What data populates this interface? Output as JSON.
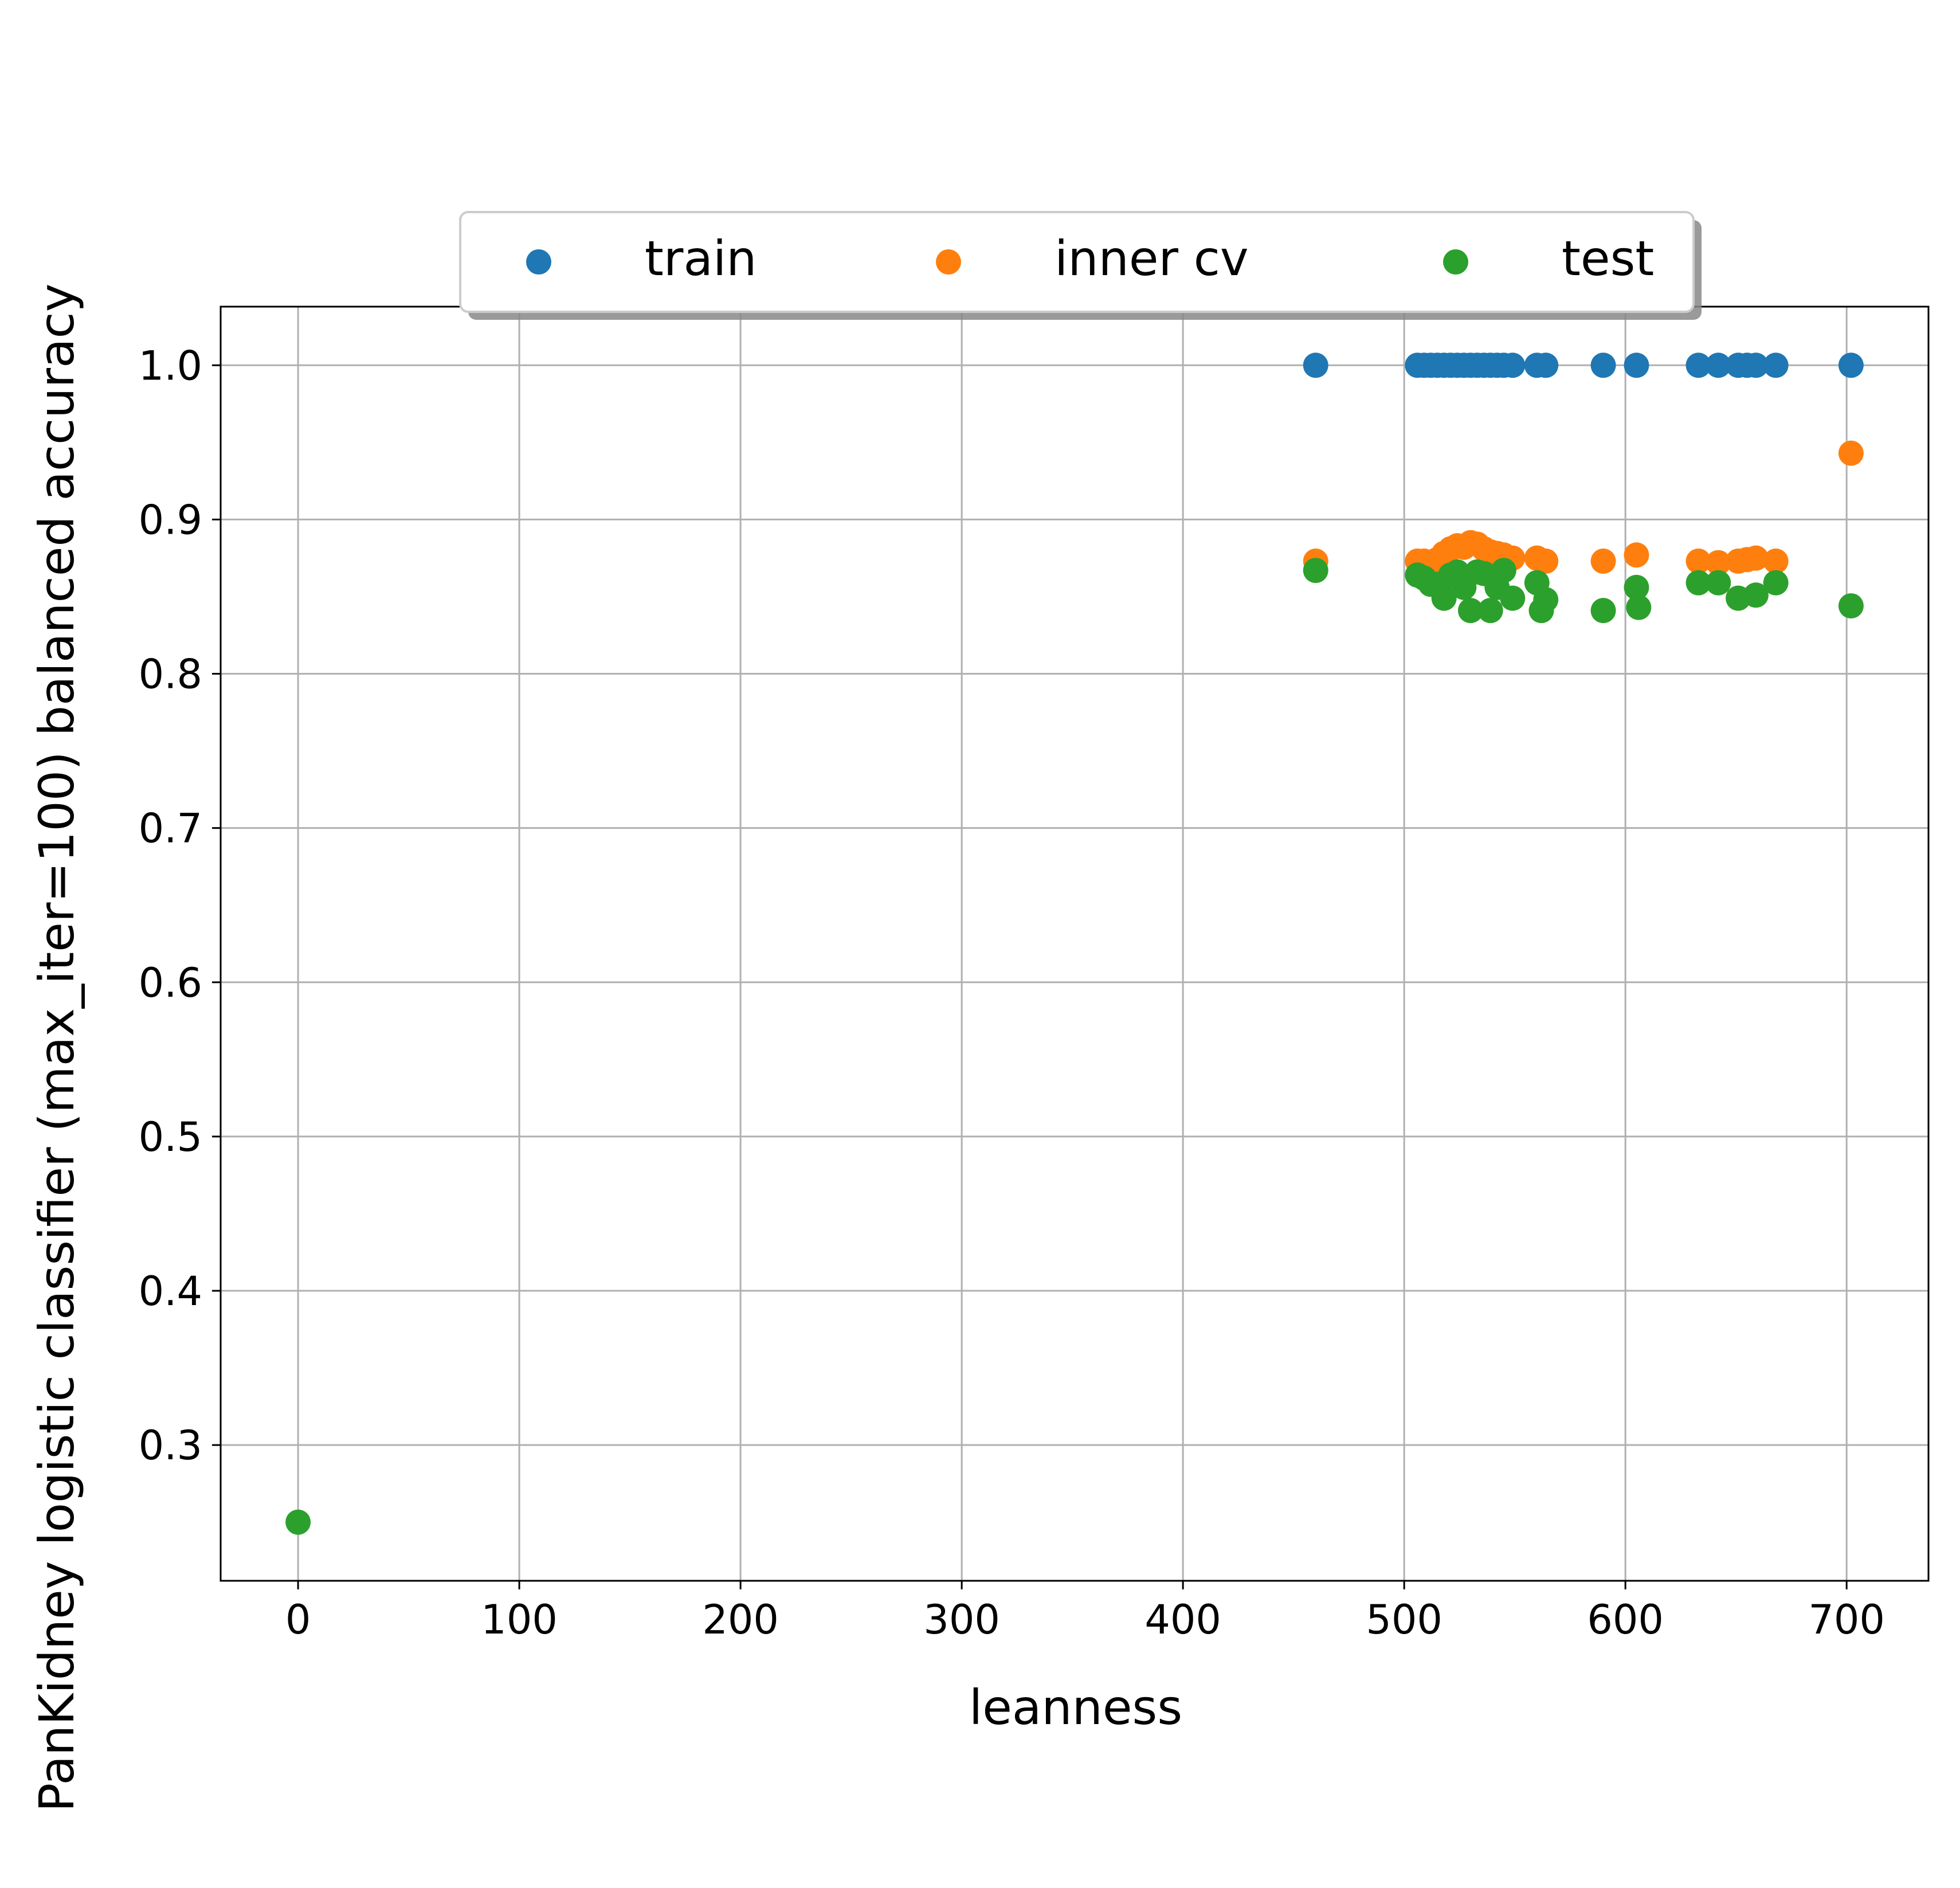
{
  "chart_data": {
    "type": "scatter",
    "title": "",
    "xlabel": "leanness",
    "ylabel": "PanKidney logistic classifier (max_iter=100) balanced accuracy",
    "xlim": [
      -35,
      737
    ],
    "ylim": [
      0.212,
      1.038
    ],
    "xticks": [
      "0",
      "100",
      "200",
      "300",
      "400",
      "500",
      "600",
      "700"
    ],
    "yticks": [
      "0.3",
      "0.4",
      "0.5",
      "0.6",
      "0.7",
      "0.8",
      "0.9",
      "1.0"
    ],
    "grid": true,
    "legend_position": "top-center",
    "series": [
      {
        "name": "train",
        "color": "#1f77b4",
        "points": [
          [
            460,
            1.0
          ],
          [
            506,
            1.0
          ],
          [
            509,
            1.0
          ],
          [
            512,
            1.0
          ],
          [
            515,
            1.0
          ],
          [
            518,
            1.0
          ],
          [
            521,
            1.0
          ],
          [
            524,
            1.0
          ],
          [
            527,
            1.0
          ],
          [
            530,
            1.0
          ],
          [
            533,
            1.0
          ],
          [
            536,
            1.0
          ],
          [
            539,
            1.0
          ],
          [
            542,
            1.0
          ],
          [
            545,
            1.0
          ],
          [
            549,
            1.0
          ],
          [
            560,
            1.0
          ],
          [
            564,
            1.0
          ],
          [
            590,
            1.0
          ],
          [
            605,
            1.0
          ],
          [
            633,
            1.0
          ],
          [
            642,
            1.0
          ],
          [
            651,
            1.0
          ],
          [
            655,
            1.0
          ],
          [
            659,
            1.0
          ],
          [
            668,
            1.0
          ],
          [
            702,
            1.0
          ]
        ]
      },
      {
        "name": "inner cv",
        "color": "#ff7f0e",
        "points": [
          [
            460,
            0.873
          ],
          [
            506,
            0.873
          ],
          [
            509,
            0.873
          ],
          [
            512,
            0.872
          ],
          [
            515,
            0.874
          ],
          [
            518,
            0.878
          ],
          [
            521,
            0.881
          ],
          [
            524,
            0.883
          ],
          [
            527,
            0.882
          ],
          [
            530,
            0.885
          ],
          [
            533,
            0.884
          ],
          [
            536,
            0.881
          ],
          [
            539,
            0.879
          ],
          [
            542,
            0.878
          ],
          [
            545,
            0.877
          ],
          [
            549,
            0.875
          ],
          [
            560,
            0.875
          ],
          [
            564,
            0.873
          ],
          [
            590,
            0.873
          ],
          [
            605,
            0.877
          ],
          [
            633,
            0.873
          ],
          [
            642,
            0.872
          ],
          [
            651,
            0.873
          ],
          [
            655,
            0.874
          ],
          [
            659,
            0.875
          ],
          [
            668,
            0.873
          ],
          [
            702,
            0.943
          ]
        ]
      },
      {
        "name": "test",
        "color": "#2ca02c",
        "points": [
          [
            460,
            0.867
          ],
          [
            506,
            0.864
          ],
          [
            509,
            0.862
          ],
          [
            512,
            0.858
          ],
          [
            515,
            0.858
          ],
          [
            518,
            0.849
          ],
          [
            521,
            0.864
          ],
          [
            524,
            0.866
          ],
          [
            527,
            0.856
          ],
          [
            530,
            0.841
          ],
          [
            533,
            0.866
          ],
          [
            536,
            0.865
          ],
          [
            539,
            0.841
          ],
          [
            542,
            0.856
          ],
          [
            545,
            0.867
          ],
          [
            549,
            0.849
          ],
          [
            560,
            0.859
          ],
          [
            562,
            0.841
          ],
          [
            564,
            0.848
          ],
          [
            590,
            0.841
          ],
          [
            605,
            0.856
          ],
          [
            606,
            0.843
          ],
          [
            633,
            0.859
          ],
          [
            642,
            0.859
          ],
          [
            651,
            0.849
          ],
          [
            659,
            0.851
          ],
          [
            668,
            0.859
          ],
          [
            702,
            0.844
          ],
          [
            0,
            0.25
          ]
        ]
      }
    ]
  }
}
